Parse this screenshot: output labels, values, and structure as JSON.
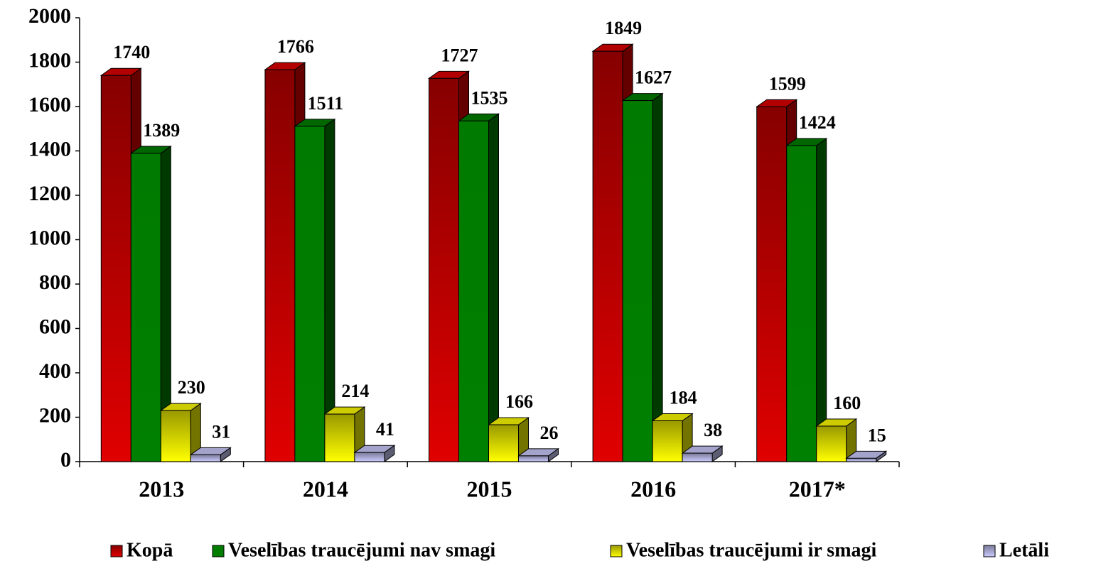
{
  "chart_data": {
    "type": "bar3d",
    "categories": [
      "2013",
      "2014",
      "2015",
      "2016",
      "2017*"
    ],
    "series": [
      {
        "name": "Kopā",
        "color": "#e00000",
        "values": [
          1740,
          1766,
          1727,
          1849,
          1599
        ]
      },
      {
        "name": "Veselības traucējumi nav smagi",
        "color": "#008000",
        "values": [
          1389,
          1511,
          1535,
          1627,
          1424
        ]
      },
      {
        "name": "Veselības traucējumi ir smagi",
        "color": "#ffff00",
        "values": [
          230,
          214,
          166,
          184,
          160
        ]
      },
      {
        "name": "Letāli",
        "color": "#ccccff",
        "values": [
          31,
          41,
          26,
          38,
          15
        ]
      }
    ],
    "ylim": [
      0,
      2000
    ],
    "yticks": [
      0,
      200,
      400,
      600,
      800,
      1000,
      1200,
      1400,
      1600,
      1800,
      2000
    ],
    "grid": false,
    "legend": "bottom"
  }
}
